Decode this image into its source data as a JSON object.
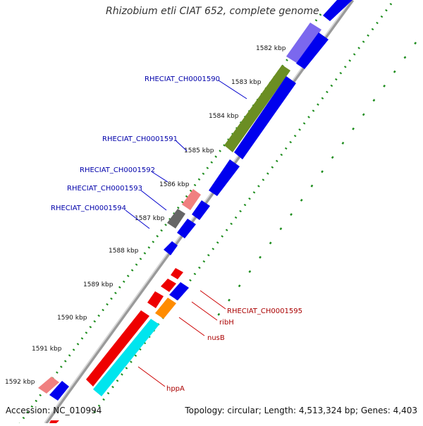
{
  "title": "Rhizobium etli CIAT 652, complete genome",
  "footer": {
    "accession": "Accession: NC_010994",
    "topology": "Topology: circular; Length: 4,513,324 bp; Genes: 4,403"
  },
  "ticks": [
    "1582 kbp",
    "1583 kbp",
    "1584 kbp",
    "1585 kbp",
    "1586 kbp",
    "1587 kbp",
    "1588 kbp",
    "1589 kbp",
    "1590 kbp",
    "1591 kbp",
    "1592 kbp"
  ],
  "gene_labels": [
    {
      "text": "RHECIAT_CH0001590",
      "color": "#0000aa"
    },
    {
      "text": "RHECIAT_CH0001591",
      "color": "#0000aa"
    },
    {
      "text": "RHECIAT_CH0001592",
      "color": "#0000aa"
    },
    {
      "text": "RHECIAT_CH0001593",
      "color": "#0000aa"
    },
    {
      "text": "RHECIAT_CH0001594",
      "color": "#0000aa"
    },
    {
      "text": "RHECIAT_CH0001595",
      "color": "#aa0000"
    },
    {
      "text": "ribH",
      "color": "#aa0000"
    },
    {
      "text": "nusB",
      "color": "#aa0000"
    },
    {
      "text": "hppA",
      "color": "#aa0000"
    }
  ],
  "colors": {
    "forward_blue": "#0000ee",
    "red": "#ee0000",
    "salmon": "#f08080",
    "olive": "#6b8e23",
    "purple": "#7b68ee",
    "gray": "#666666",
    "cyan": "#00e5ee",
    "orange": "#ff8c00",
    "backbone": "#808080",
    "dots": "#228b22"
  }
}
